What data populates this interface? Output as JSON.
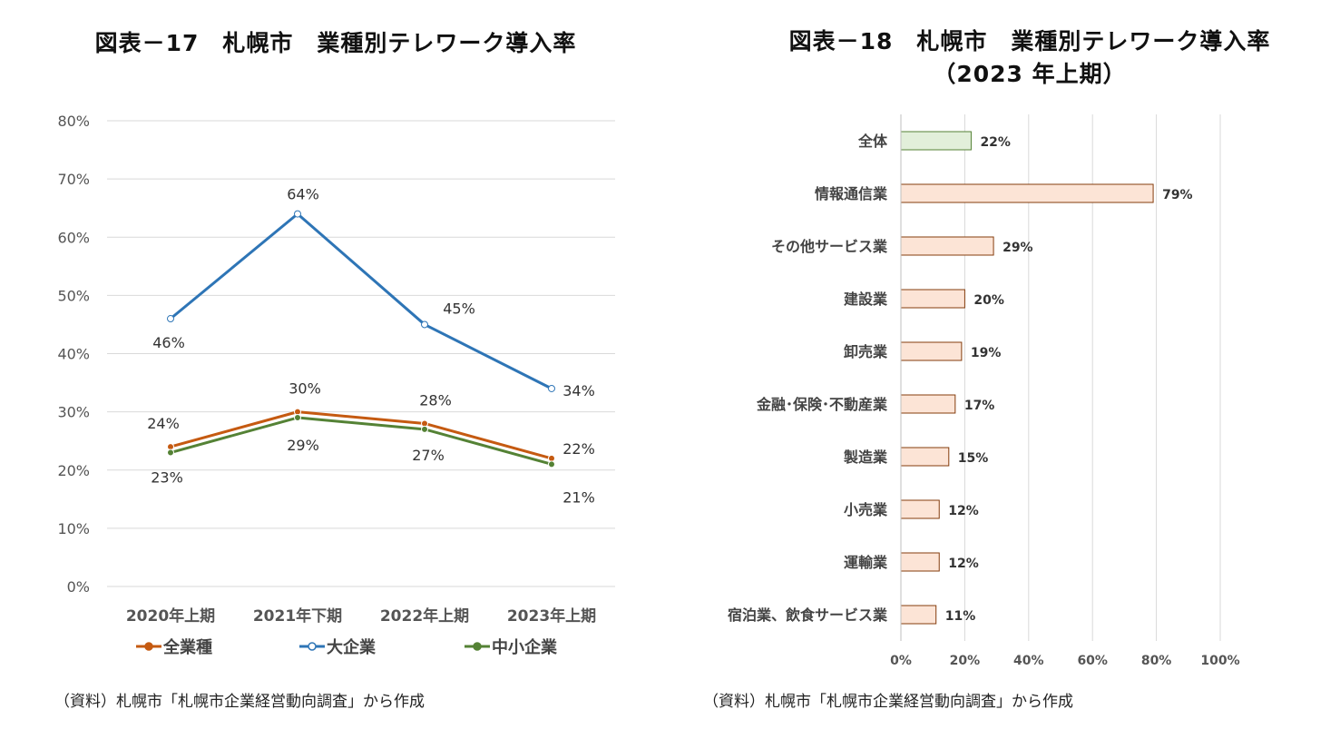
{
  "chart_data": [
    {
      "type": "line",
      "title": "図表－17　札幌市　業種別テレワーク導入率",
      "categories": [
        "2020年上期",
        "2021年下期",
        "2022年上期",
        "2023年上期"
      ],
      "ylim": [
        0,
        80
      ],
      "yticks": [
        "0%",
        "10%",
        "20%",
        "30%",
        "40%",
        "50%",
        "60%",
        "70%",
        "80%"
      ],
      "series": [
        {
          "name": "全業種",
          "color": "#c55a11",
          "values": [
            24,
            30,
            28,
            22
          ],
          "labels": [
            "24%",
            "30%",
            "28%",
            "22%"
          ]
        },
        {
          "name": "大企業",
          "color": "#2e75b6",
          "values": [
            46,
            64,
            45,
            34
          ],
          "labels": [
            "46%",
            "64%",
            "45%",
            "34%"
          ]
        },
        {
          "name": "中小企業",
          "color": "#548235",
          "values": [
            23,
            29,
            27,
            21
          ],
          "labels": [
            "23%",
            "29%",
            "27%",
            "21%"
          ]
        }
      ],
      "legend": "bottom",
      "grid": true
    },
    {
      "type": "bar",
      "orientation": "horizontal",
      "title": "図表－18　札幌市　業種別テレワーク導入率",
      "subtitle": "（2023 年上期）",
      "categories": [
        "全体",
        "情報通信業",
        "その他サービス業",
        "建設業",
        "卸売業",
        "金融･保険･不動産業",
        "製造業",
        "小売業",
        "運輸業",
        "宿泊業、飲食サービス業"
      ],
      "values": [
        22,
        79,
        29,
        20,
        19,
        17,
        15,
        12,
        12,
        11
      ],
      "labels": [
        "22%",
        "79%",
        "29%",
        "20%",
        "19%",
        "17%",
        "15%",
        "12%",
        "12%",
        "11%"
      ],
      "xlim": [
        0,
        100
      ],
      "xticks": [
        "0%",
        "20%",
        "40%",
        "60%",
        "80%",
        "100%"
      ],
      "colors": {
        "highlight_fill": "#e2efda",
        "highlight_stroke": "#548235",
        "fill": "#fce4d6",
        "stroke": "#843c0c"
      },
      "grid": true
    }
  ],
  "titles": {
    "left": "図表－17　札幌市　業種別テレワーク導入率",
    "right": "図表－18　札幌市　業種別テレワーク導入率",
    "right_sub": "（2023 年上期）"
  },
  "sources": {
    "left": "（資料）札幌市「札幌市企業経営動向調査」から作成",
    "right": "（資料）札幌市「札幌市企業経営動向調査」から作成"
  }
}
